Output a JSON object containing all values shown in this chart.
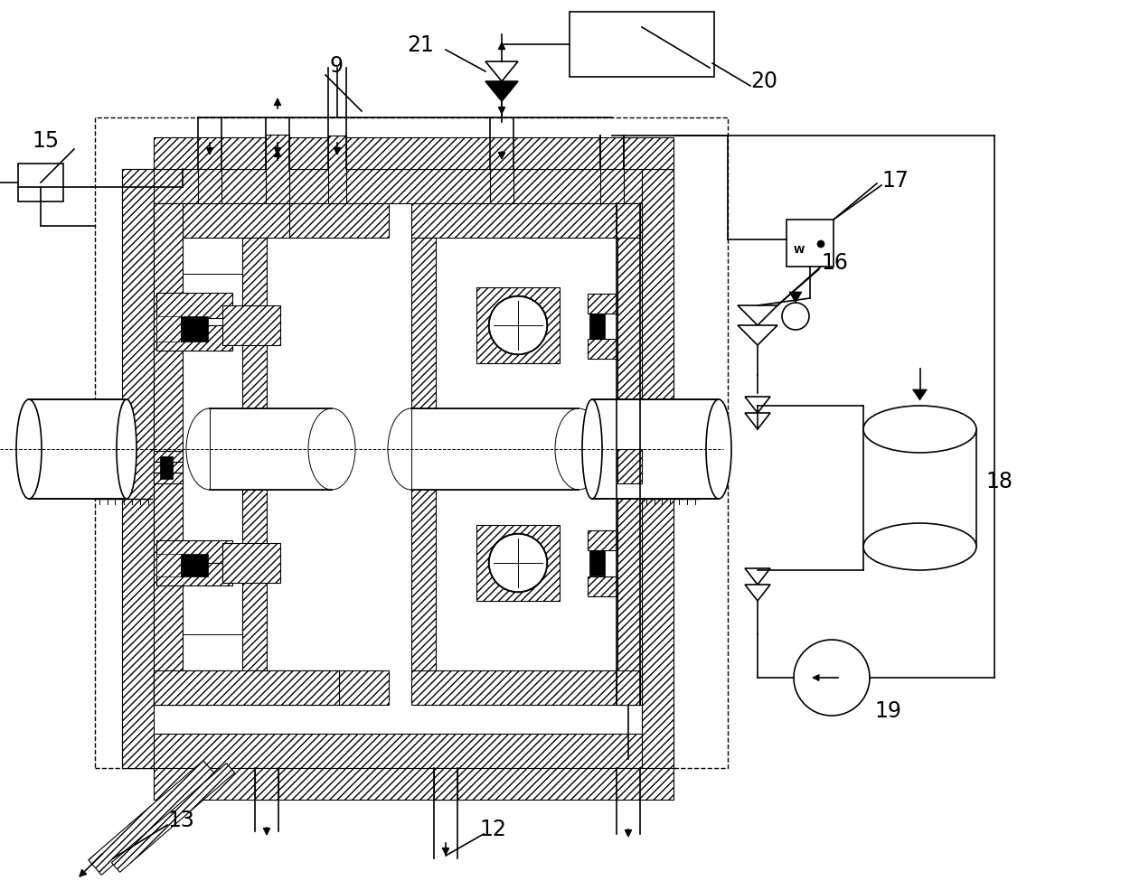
{
  "bg_color": "#ffffff",
  "line_color": "#000000",
  "fig_width": 12.4,
  "fig_height": 9.85,
  "dpi": 100
}
